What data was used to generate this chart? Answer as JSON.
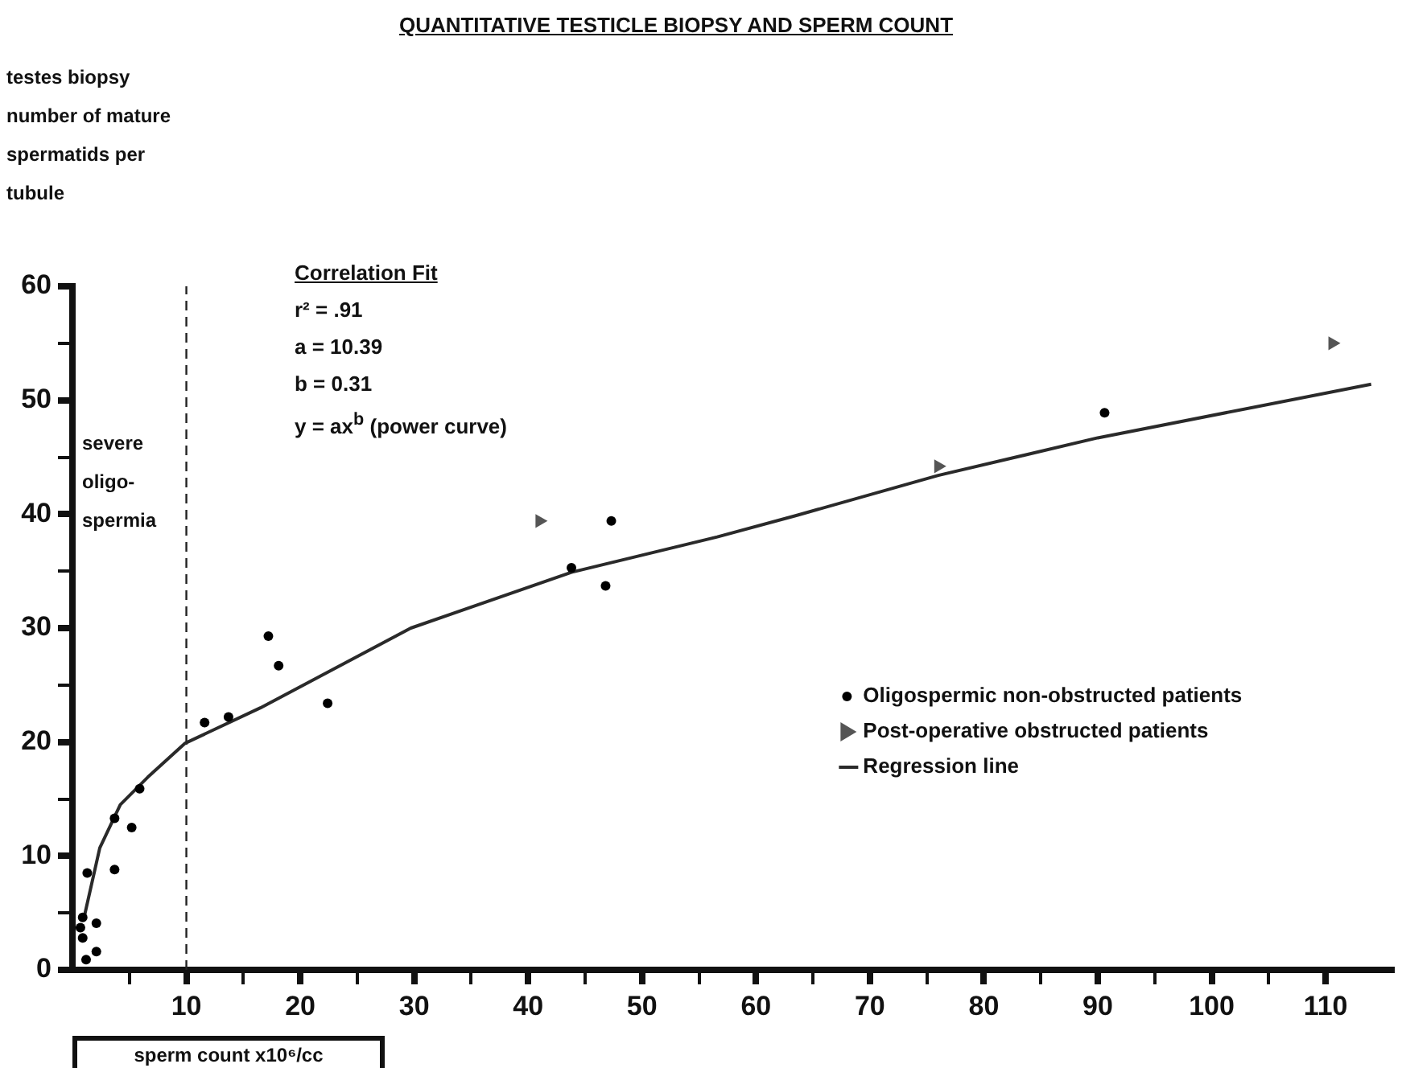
{
  "chart_data": {
    "type": "scatter",
    "title": "QUANTITATIVE TESTICLE BIOPSY AND SPERM COUNT",
    "xlabel": "sperm count x10⁶/cc",
    "ylabel": "testes biopsy\nnumber of mature\nspermatids per\ntubule",
    "annotations": [
      "Correlation Fit",
      "r² = .91",
      "a = 10.39",
      "b = 0.31",
      "y = ax$^{b}$ (power curve)"
    ],
    "xlim": [
      0,
      116
    ],
    "ylim": [
      0,
      60
    ],
    "xticks": [
      {
        "value": 5,
        "label": null
      },
      10,
      {
        "value": 15,
        "label": null
      },
      20,
      {
        "value": 25,
        "label": null
      },
      30,
      {
        "value": 35,
        "label": null
      },
      40,
      {
        "value": 45,
        "label": null
      },
      50,
      {
        "value": 55,
        "label": null
      },
      60,
      {
        "value": 65,
        "label": null
      },
      70,
      {
        "value": 75,
        "label": null
      },
      80,
      {
        "value": 85,
        "label": null
      },
      90,
      {
        "value": 95,
        "label": null
      },
      100,
      {
        "value": 105,
        "label": null
      },
      110
    ],
    "yticks": [
      0,
      {
        "value": 5,
        "label": null
      },
      10,
      {
        "value": 15,
        "label": null
      },
      20,
      {
        "value": 25,
        "label": null
      },
      30,
      {
        "value": 35,
        "label": null
      },
      40,
      {
        "value": 45,
        "label": null
      },
      50,
      {
        "value": 55,
        "label": null
      },
      60
    ],
    "grid": false,
    "legend": "bottom right",
    "ref_lines": [
      {
        "axis": "x",
        "value": 10,
        "label": "severe\noligo-\nspermia",
        "line_style": "dashed"
      }
    ],
    "series": [
      {
        "name": "Oligospermic non-obstructed patients",
        "marker": "circle",
        "color": "#000000",
        "x": [
          17.2,
          18.1,
          11.6,
          13.7,
          22.4,
          5.9,
          3.7,
          5.2,
          3.7,
          1.3,
          2.1,
          0.9,
          0.7,
          2.1,
          0.9,
          1.2,
          47.3,
          43.8,
          46.8,
          90.6
        ],
        "values": [
          29.3,
          26.7,
          21.7,
          22.2,
          23.4,
          15.9,
          13.3,
          12.5,
          8.8,
          8.5,
          4.1,
          4.6,
          3.7,
          1.6,
          2.8,
          0.9,
          39.4,
          35.3,
          33.7,
          48.9
        ]
      },
      {
        "name": "Post-operative obstructed patients",
        "marker": "triangle",
        "color": "#555555",
        "x": [
          41.0,
          76.0,
          110.6
        ],
        "values": [
          39.4,
          44.2,
          55.0
        ]
      },
      {
        "name": "Regression line",
        "type": "line",
        "marker": "none",
        "line_style": "solid",
        "color": "#2a2a2a",
        "x": [
          1.0,
          2.4,
          4.2,
          6.6,
          9.9,
          16.5,
          29.7,
          43.8,
          56.6,
          63.6,
          76.0,
          90.0,
          114
        ],
        "values": [
          4.5,
          10.7,
          14.5,
          16.9,
          19.9,
          23.0,
          30.0,
          34.9,
          38.0,
          39.9,
          43.4,
          46.7,
          51.4
        ]
      }
    ]
  }
}
